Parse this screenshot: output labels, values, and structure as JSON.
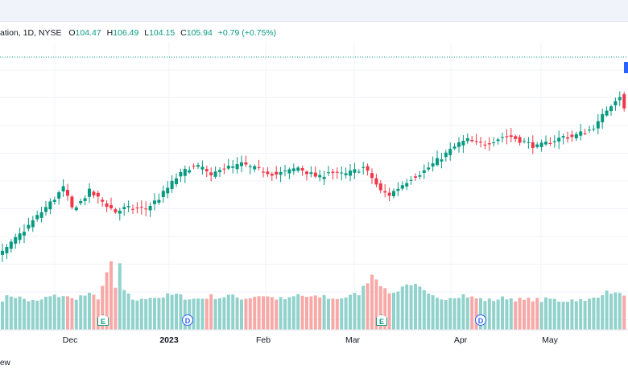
{
  "header": {
    "symbol_partial": "ation, 1D, NYSE",
    "open_label": "O",
    "open": "104.47",
    "high_label": "H",
    "high": "106.49",
    "low_label": "L",
    "low": "104.15",
    "close_label": "C",
    "close": "105.94",
    "change": "+0.79 (+0.75%)"
  },
  "footer": {
    "partial_text": "ew"
  },
  "colors": {
    "up": "#089981",
    "down": "#f23645",
    "up_vol": "#92d2cc",
    "down_vol": "#f7a9a7",
    "grid": "#f0f3fa"
  },
  "events": [
    {
      "type": "earnings",
      "letter": "E",
      "date": "Dec 15"
    },
    {
      "type": "dividend",
      "letter": "D",
      "date": "Jan 6"
    },
    {
      "type": "earnings",
      "letter": "E",
      "date": "Mar 14"
    },
    {
      "type": "dividend",
      "letter": "D",
      "date": "Apr 7"
    }
  ],
  "chart_data": {
    "type": "candlestick",
    "interval": "1D",
    "exchange": "NYSE",
    "x_ticks": [
      {
        "label": "Dec"
      },
      {
        "label": "2023",
        "bold": true
      },
      {
        "label": "Feb"
      },
      {
        "label": "Mar"
      },
      {
        "label": "Apr"
      },
      {
        "label": "May"
      }
    ],
    "ylim": [
      80,
      110
    ],
    "grid": true,
    "price_anchors": [
      [
        0,
        83
      ],
      [
        3,
        85
      ],
      [
        6,
        87
      ],
      [
        9,
        89
      ],
      [
        12,
        91
      ],
      [
        14,
        92.5
      ],
      [
        16,
        89.5
      ],
      [
        18,
        90.5
      ],
      [
        20,
        92
      ],
      [
        22,
        91
      ],
      [
        24,
        90
      ],
      [
        26,
        89
      ],
      [
        28,
        89.5
      ],
      [
        30,
        89.5
      ],
      [
        33,
        89.5
      ],
      [
        36,
        91
      ],
      [
        38,
        92.5
      ],
      [
        40,
        94
      ],
      [
        43,
        95.5
      ],
      [
        46,
        95.5
      ],
      [
        48,
        94
      ],
      [
        50,
        95.5
      ],
      [
        53,
        95.5
      ],
      [
        55,
        96
      ],
      [
        57,
        95.5
      ],
      [
        60,
        95
      ],
      [
        63,
        94.5
      ],
      [
        66,
        95
      ],
      [
        68,
        95.5
      ],
      [
        71,
        94.5
      ],
      [
        73,
        94
      ],
      [
        75,
        95
      ],
      [
        77,
        94.5
      ],
      [
        79,
        94.5
      ],
      [
        81,
        95
      ],
      [
        83,
        95.5
      ],
      [
        85,
        94
      ],
      [
        87,
        92
      ],
      [
        89,
        91.5
      ],
      [
        92,
        93
      ],
      [
        94,
        94
      ],
      [
        97,
        95
      ],
      [
        99,
        96
      ],
      [
        101,
        97
      ],
      [
        103,
        98
      ],
      [
        105,
        99
      ],
      [
        107,
        99.5
      ],
      [
        109,
        99
      ],
      [
        111,
        99
      ],
      [
        113,
        99.5
      ],
      [
        115,
        100
      ],
      [
        117,
        100
      ],
      [
        119,
        99.5
      ],
      [
        121,
        99
      ],
      [
        123,
        98.5
      ],
      [
        125,
        99
      ],
      [
        127,
        99.5
      ],
      [
        129,
        100
      ],
      [
        131,
        100
      ],
      [
        133,
        100.5
      ],
      [
        135,
        101
      ],
      [
        137,
        102
      ],
      [
        139,
        104
      ],
      [
        141,
        105.5
      ],
      [
        142,
        106
      ],
      [
        143,
        104
      ]
    ],
    "volume_anchors": [
      [
        0,
        40
      ],
      [
        2,
        45
      ],
      [
        4,
        42
      ],
      [
        6,
        38
      ],
      [
        8,
        36
      ],
      [
        10,
        42
      ],
      [
        12,
        44
      ],
      [
        14,
        45
      ],
      [
        16,
        40
      ],
      [
        18,
        44
      ],
      [
        20,
        46
      ],
      [
        22,
        42
      ],
      [
        24,
        75
      ],
      [
        25,
        92
      ],
      [
        26,
        55
      ],
      [
        27,
        90
      ],
      [
        28,
        50
      ],
      [
        30,
        40
      ],
      [
        32,
        38
      ],
      [
        34,
        44
      ],
      [
        36,
        42
      ],
      [
        38,
        45
      ],
      [
        40,
        46
      ],
      [
        42,
        42
      ],
      [
        44,
        40
      ],
      [
        46,
        41
      ],
      [
        48,
        44
      ],
      [
        50,
        42
      ],
      [
        52,
        45
      ],
      [
        54,
        42
      ],
      [
        56,
        41
      ],
      [
        58,
        44
      ],
      [
        60,
        45
      ],
      [
        62,
        42
      ],
      [
        64,
        40
      ],
      [
        66,
        40
      ],
      [
        68,
        46
      ],
      [
        70,
        43
      ],
      [
        72,
        42
      ],
      [
        74,
        44
      ],
      [
        76,
        40
      ],
      [
        78,
        42
      ],
      [
        80,
        44
      ],
      [
        82,
        48
      ],
      [
        84,
        65
      ],
      [
        85,
        75
      ],
      [
        86,
        70
      ],
      [
        88,
        52
      ],
      [
        90,
        48
      ],
      [
        92,
        58
      ],
      [
        94,
        62
      ],
      [
        96,
        55
      ],
      [
        98,
        45
      ],
      [
        100,
        40
      ],
      [
        102,
        42
      ],
      [
        104,
        44
      ],
      [
        106,
        46
      ],
      [
        108,
        42
      ],
      [
        110,
        40
      ],
      [
        112,
        38
      ],
      [
        114,
        40
      ],
      [
        116,
        42
      ],
      [
        118,
        40
      ],
      [
        120,
        38
      ],
      [
        122,
        40
      ],
      [
        124,
        38
      ],
      [
        126,
        40
      ],
      [
        128,
        38
      ],
      [
        130,
        38
      ],
      [
        132,
        40
      ],
      [
        134,
        36
      ],
      [
        136,
        42
      ],
      [
        138,
        48
      ],
      [
        140,
        50
      ],
      [
        142,
        46
      ],
      [
        143,
        48
      ]
    ]
  }
}
